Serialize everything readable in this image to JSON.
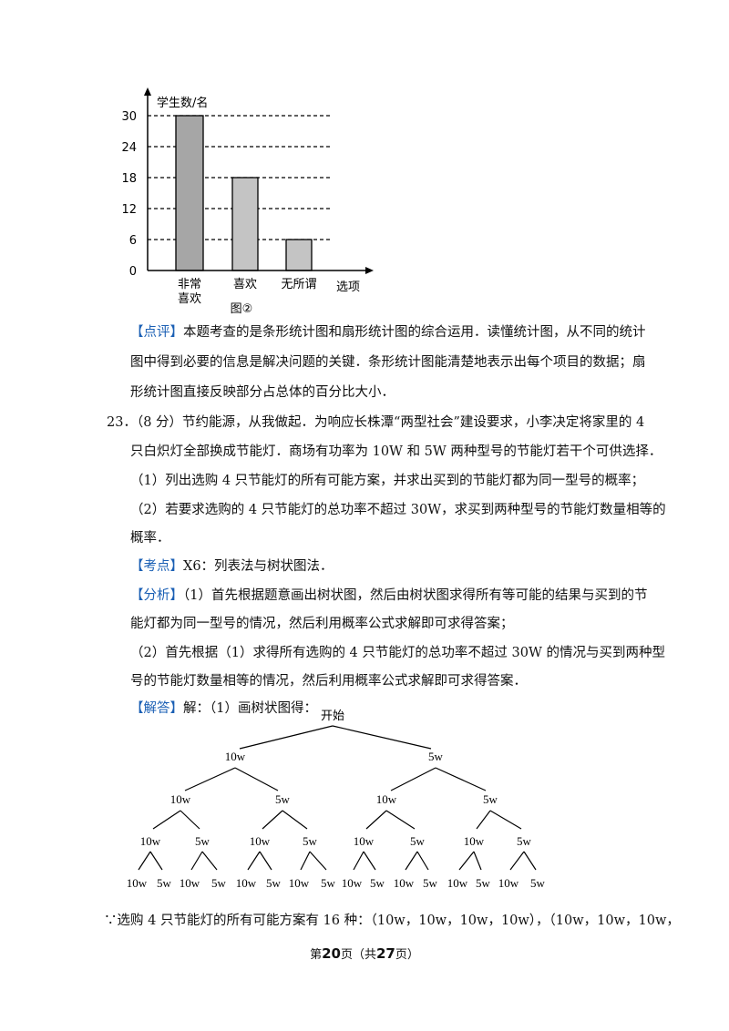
{
  "chart_data": {
    "type": "bar",
    "ylabel": "学生数/名",
    "xlabel": "选项",
    "caption": "图②",
    "categories": [
      "非常喜欢",
      "喜欢",
      "无所谓"
    ],
    "category_lines": [
      [
        "非常",
        "喜欢"
      ],
      [
        "喜欢"
      ],
      [
        "无所谓"
      ]
    ],
    "values": [
      30,
      18,
      6
    ],
    "yticks": [
      0,
      6,
      12,
      18,
      24,
      30
    ],
    "ylim": [
      0,
      30
    ],
    "grid": "dashed horizontal",
    "bar_colors": [
      "#a6a6a6",
      "#c4c4c4",
      "#c4c4c4"
    ]
  },
  "review": {
    "tag": "【点评】",
    "lines": [
      "本题考查的是条形统计图和扇形统计图的综合运用．读懂统计图，从不同的统计",
      "图中得到必要的信息是解决问题的关键．条形统计图能清楚地表示出每个项目的数据；扇",
      "形统计图直接反映部分占总体的百分比大小．"
    ]
  },
  "problem": {
    "lines": [
      "23．（8 分）节约能源，从我做起．为响应长株潭“两型社会”建设要求，小李决定将家里的 4",
      "只白炽灯全部换成节能灯．商场有功率为 10W 和 5W 两种型号的节能灯若干个可供选择．",
      "（1）列出选购 4 只节能灯的所有可能方案，并求出买到的节能灯都为同一型号的概率；",
      "（2）若要求选购的 4 只节能灯的总功率不超过 30W，求买到两种型号的节能灯数量相等的",
      "概率．"
    ]
  },
  "kaodian": {
    "tag": "【考点】",
    "text": "X6：列表法与树状图法．"
  },
  "fenxi": {
    "tag": "【分析】",
    "lines": [
      "（1）首先根据题意画出树状图，然后由树状图求得所有等可能的结果与买到的节",
      "能灯都为同一型号的情况，然后利用概率公式求解即可求得答案；",
      "（2）首先根据（1）求得所有选购的 4 只节能灯的总功率不超过 30W 的情况与买到两种型",
      "号的节能灯数量相等的情况，然后利用概率公式求解即可求得答案．"
    ]
  },
  "jieda": {
    "tag": "【解答】",
    "text": "解：（1）画树状图得："
  },
  "tree": {
    "root": "开始",
    "level1": [
      "10w",
      "5w"
    ],
    "level2": [
      "10w",
      "5w",
      "10w",
      "5w"
    ],
    "level3": [
      "10w",
      "5w",
      "10w",
      "5w",
      "10w",
      "5w",
      "10w",
      "5w"
    ],
    "level4": [
      "10w",
      "5w",
      "10w",
      "5w",
      "10w",
      "5w",
      "10w",
      "5w",
      "10w",
      "5w",
      "10w",
      "5w",
      "10w",
      "5w",
      "10w",
      "5w"
    ]
  },
  "conclusion": "∵选购 4 只节能灯的所有可能方案有 16 种：（10w，10w，10w，10w），（10w，10w，10w，",
  "footer": {
    "prefix": "第",
    "page": "20",
    "mid": "页（共",
    "total": "27",
    "suffix": "页）"
  }
}
